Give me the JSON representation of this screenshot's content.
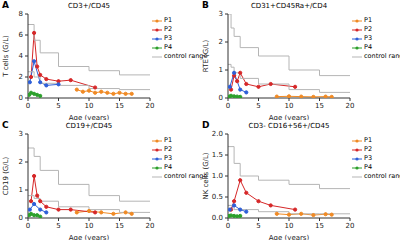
{
  "chart_data": [
    {
      "type": "line",
      "panel": "A",
      "title": "CD3+/CD45",
      "y_label": "T cells (G/L)",
      "x_label": "Age (years)",
      "xlim": [
        0,
        20
      ],
      "xticks": [
        0,
        5,
        10,
        15,
        20
      ],
      "ylim": [
        0,
        8
      ],
      "yticks": [
        0,
        2,
        4,
        6,
        8
      ],
      "legend": "upper right",
      "series": [
        {
          "name": "P1",
          "color": "#f08a24",
          "marker": "circle",
          "x": [
            8,
            9,
            10,
            11,
            12,
            13,
            14,
            15,
            16,
            17
          ],
          "values": [
            0.8,
            0.6,
            0.7,
            0.5,
            0.6,
            0.5,
            0.4,
            0.5,
            0.4,
            0.4
          ]
        },
        {
          "name": "P2",
          "color": "#d62728",
          "marker": "circle",
          "x": [
            0.5,
            1,
            1.5,
            2,
            3,
            5,
            7,
            11
          ],
          "values": [
            2,
            6.2,
            3,
            2.2,
            1.8,
            1.6,
            1.7,
            1.0
          ]
        },
        {
          "name": "P3",
          "color": "#2e5fd8",
          "marker": "circle",
          "x": [
            0.3,
            1,
            2,
            3,
            5
          ],
          "values": [
            1.5,
            3.5,
            1.5,
            1.2,
            1.3
          ]
        },
        {
          "name": "P4",
          "color": "#2ca02c",
          "marker": "circle",
          "x": [
            0.2,
            0.5,
            1,
            1.5,
            2
          ],
          "values": [
            0.3,
            0.5,
            0.4,
            0.3,
            0.2
          ]
        },
        {
          "name": "control range",
          "color": "#b5b5b5",
          "type": "step",
          "x": [
            0,
            1,
            2,
            5,
            10,
            15,
            20
          ],
          "lower": [
            2.5,
            2.0,
            1.4,
            1.2,
            0.9,
            0.8,
            0.8
          ],
          "upper": [
            7.0,
            5.5,
            4.3,
            3.0,
            2.6,
            2.2,
            2.2
          ]
        }
      ]
    },
    {
      "type": "line",
      "panel": "B",
      "title": "CD31+CD45Ra+/CD4",
      "y_label": "RTE (G/L)",
      "x_label": "Age (years)",
      "xlim": [
        0,
        20
      ],
      "xticks": [
        0,
        5,
        10,
        15,
        20
      ],
      "ylim": [
        0,
        3
      ],
      "yticks": [
        0,
        1,
        2,
        3
      ],
      "legend": "upper right",
      "series": [
        {
          "name": "P1",
          "color": "#f08a24",
          "marker": "circle",
          "x": [
            8,
            10,
            12,
            14,
            16,
            17
          ],
          "values": [
            0.05,
            0.06,
            0.05,
            0.04,
            0.05,
            0.04
          ]
        },
        {
          "name": "P2",
          "color": "#d62728",
          "marker": "circle",
          "x": [
            0.5,
            1,
            1.5,
            2,
            3,
            5,
            7,
            11
          ],
          "values": [
            0.3,
            0.8,
            0.6,
            0.9,
            0.5,
            0.4,
            0.5,
            0.4
          ]
        },
        {
          "name": "P3",
          "color": "#2e5fd8",
          "marker": "circle",
          "x": [
            0.3,
            1,
            2,
            3
          ],
          "values": [
            0.4,
            0.9,
            0.3,
            0.2
          ]
        },
        {
          "name": "P4",
          "color": "#2ca02c",
          "marker": "circle",
          "x": [
            0.2,
            0.5,
            1,
            1.5,
            2
          ],
          "values": [
            0.05,
            0.08,
            0.06,
            0.05,
            0.04
          ]
        },
        {
          "name": "control range",
          "color": "#b5b5b5",
          "type": "step",
          "x": [
            0,
            0.5,
            1,
            2,
            5,
            10,
            15,
            20
          ],
          "lower": [
            1.2,
            1.1,
            0.9,
            0.7,
            0.5,
            0.3,
            0.2,
            0.2
          ],
          "upper": [
            3.0,
            2.5,
            2.2,
            1.8,
            1.5,
            1.0,
            0.8,
            0.8
          ]
        }
      ]
    },
    {
      "type": "line",
      "panel": "C",
      "title": "CD19+/CD45",
      "y_label": "CD19 (G/L)",
      "x_label": "Age (years)",
      "xlim": [
        0,
        20
      ],
      "xticks": [
        0,
        5,
        10,
        15,
        20
      ],
      "ylim": [
        0,
        3
      ],
      "yticks": [
        0,
        1,
        2,
        3
      ],
      "legend": "upper right",
      "series": [
        {
          "name": "P1",
          "color": "#f08a24",
          "marker": "circle",
          "x": [
            8,
            10,
            12,
            14,
            16,
            17
          ],
          "values": [
            0.2,
            0.25,
            0.2,
            0.15,
            0.2,
            0.15
          ]
        },
        {
          "name": "P2",
          "color": "#d62728",
          "marker": "circle",
          "x": [
            0.5,
            1,
            1.5,
            2,
            3,
            5,
            7,
            11
          ],
          "values": [
            0.6,
            1.5,
            0.8,
            0.6,
            0.4,
            0.3,
            0.3,
            0.2
          ]
        },
        {
          "name": "P3",
          "color": "#2e5fd8",
          "marker": "circle",
          "x": [
            0.3,
            1,
            2,
            3
          ],
          "values": [
            0.3,
            0.5,
            0.3,
            0.2
          ]
        },
        {
          "name": "P4",
          "color": "#2ca02c",
          "marker": "circle",
          "x": [
            0.2,
            0.5,
            1,
            1.5,
            2
          ],
          "values": [
            0.1,
            0.15,
            0.1,
            0.1,
            0.05
          ]
        },
        {
          "name": "control range",
          "color": "#b5b5b5",
          "type": "step",
          "x": [
            0,
            1,
            2,
            5,
            10,
            15,
            20
          ],
          "lower": [
            0.8,
            0.7,
            0.6,
            0.4,
            0.3,
            0.2,
            0.2
          ],
          "upper": [
            2.5,
            2.2,
            1.7,
            1.2,
            0.8,
            0.6,
            0.6
          ]
        }
      ]
    },
    {
      "type": "line",
      "panel": "D",
      "title": "CD3- CD16+56+/CD45",
      "y_label": "NK cells (G/L)",
      "x_label": "Age (years)",
      "xlim": [
        0,
        20
      ],
      "xticks": [
        0,
        5,
        10,
        15,
        20
      ],
      "ylim": [
        0,
        2
      ],
      "yticks": [
        {
          "value": 0,
          "label": "0.0"
        },
        {
          "value": 0.5,
          "label": "0.5"
        },
        {
          "value": 1,
          "label": "1.0"
        },
        {
          "value": 1.5,
          "label": "1.5"
        },
        {
          "value": 2,
          "label": "2.0"
        }
      ],
      "legend": "upper right",
      "series": [
        {
          "name": "P1",
          "color": "#f08a24",
          "marker": "circle",
          "x": [
            8,
            10,
            12,
            14,
            16,
            17
          ],
          "values": [
            0.1,
            0.08,
            0.1,
            0.07,
            0.09,
            0.08
          ]
        },
        {
          "name": "P2",
          "color": "#d62728",
          "marker": "circle",
          "x": [
            0.5,
            1,
            2,
            3,
            5,
            7,
            11
          ],
          "values": [
            0.2,
            0.4,
            0.9,
            0.6,
            0.4,
            0.3,
            0.2
          ]
        },
        {
          "name": "P3",
          "color": "#2e5fd8",
          "marker": "circle",
          "x": [
            0.3,
            1,
            2,
            3
          ],
          "values": [
            0.2,
            0.3,
            0.2,
            0.15
          ]
        },
        {
          "name": "P4",
          "color": "#2ca02c",
          "marker": "circle",
          "x": [
            0.2,
            0.5,
            1,
            1.5,
            2
          ],
          "values": [
            0.05,
            0.06,
            0.05,
            0.04,
            0.05
          ]
        },
        {
          "name": "control range",
          "color": "#b5b5b5",
          "type": "step",
          "x": [
            0,
            1,
            2,
            5,
            10,
            15,
            20
          ],
          "lower": [
            0.3,
            0.2,
            0.2,
            0.15,
            0.1,
            0.1,
            0.1
          ],
          "upper": [
            1.7,
            1.3,
            1.0,
            0.9,
            0.8,
            0.7,
            0.7
          ]
        }
      ]
    }
  ]
}
